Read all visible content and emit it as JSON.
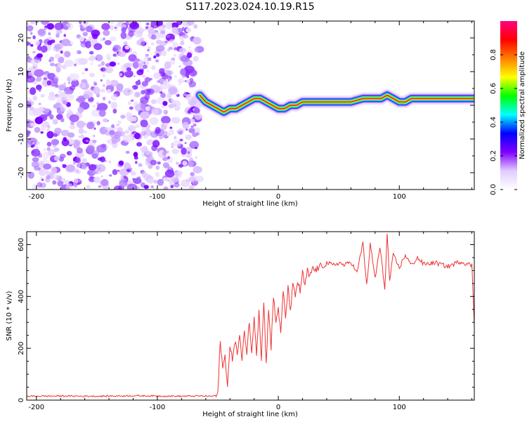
{
  "title": "S117.2023.024.10.19.R15",
  "chart_data": [
    {
      "type": "heatmap",
      "xlabel": "Height of straight line (km)",
      "ylabel": "Frequency (Hz)",
      "xlim": [
        -208,
        162
      ],
      "ylim": [
        -25,
        25
      ],
      "x_ticks": [
        -200,
        -100,
        0,
        100
      ],
      "y_ticks": [
        -20,
        -10,
        0,
        10,
        20
      ],
      "noise_region_x": [
        -208,
        -65
      ],
      "ridge": {
        "x": [
          -65,
          -60,
          -55,
          -50,
          -45,
          -40,
          -35,
          -30,
          -25,
          -20,
          -15,
          -10,
          -5,
          0,
          5,
          10,
          15,
          20,
          30,
          40,
          50,
          60,
          70,
          80,
          85,
          90,
          95,
          100,
          105,
          110,
          120,
          130,
          140,
          150,
          162
        ],
        "y": [
          3,
          1,
          0,
          -1,
          -2,
          -1,
          -1,
          0,
          1,
          2,
          2,
          1,
          0,
          -1,
          -1,
          0,
          0,
          1,
          1,
          1,
          1,
          1,
          2,
          2,
          2,
          3,
          2,
          1,
          1,
          2,
          2,
          2,
          2,
          2,
          2
        ]
      },
      "colorbar": {
        "label": "Normalized spectral amplitude",
        "range": [
          0,
          1
        ],
        "ticks": [
          "0.0",
          "0.2",
          "0.4",
          "0.6",
          "0.8"
        ],
        "colors": [
          "#ffffff",
          "#e0ccff",
          "#8000ff",
          "#0000ff",
          "#00ffff",
          "#00ff00",
          "#ffff00",
          "#ff8000",
          "#ff0000",
          "#ff0080"
        ]
      }
    },
    {
      "type": "line",
      "xlabel": "Height of straight line (km)",
      "ylabel": "SNR (10 * v/v)",
      "xlim": [
        -208,
        162
      ],
      "ylim": [
        0,
        650
      ],
      "x_ticks": [
        -200,
        -100,
        0,
        100
      ],
      "y_ticks": [
        0,
        200,
        400,
        600
      ],
      "series": [
        {
          "color": "#ee3333",
          "x": [
            -208,
            -180,
            -150,
            -120,
            -100,
            -80,
            -65,
            -55,
            -50,
            -48,
            -46,
            -44,
            -42,
            -40,
            -38,
            -36,
            -34,
            -32,
            -30,
            -28,
            -26,
            -24,
            -22,
            -20,
            -18,
            -16,
            -14,
            -12,
            -10,
            -8,
            -6,
            -4,
            -2,
            0,
            2,
            4,
            6,
            8,
            10,
            12,
            14,
            16,
            18,
            20,
            22,
            24,
            26,
            28,
            30,
            35,
            40,
            45,
            50,
            55,
            60,
            65,
            70,
            73,
            76,
            80,
            84,
            88,
            90,
            92,
            95,
            100,
            105,
            110,
            115,
            120,
            130,
            140,
            150,
            160,
            162
          ],
          "y": [
            15,
            16,
            15,
            17,
            16,
            15,
            16,
            15,
            20,
            235,
            120,
            170,
            60,
            200,
            160,
            230,
            180,
            250,
            150,
            270,
            180,
            310,
            170,
            330,
            180,
            350,
            160,
            380,
            140,
            360,
            200,
            400,
            300,
            360,
            250,
            420,
            320,
            430,
            350,
            440,
            400,
            460,
            420,
            490,
            440,
            500,
            470,
            510,
            500,
            515,
            530,
            520,
            530,
            520,
            535,
            490,
            610,
            440,
            600,
            470,
            590,
            430,
            640,
            460,
            560,
            510,
            560,
            520,
            550,
            525,
            530,
            515,
            535,
            520,
            290
          ]
        }
      ]
    }
  ]
}
